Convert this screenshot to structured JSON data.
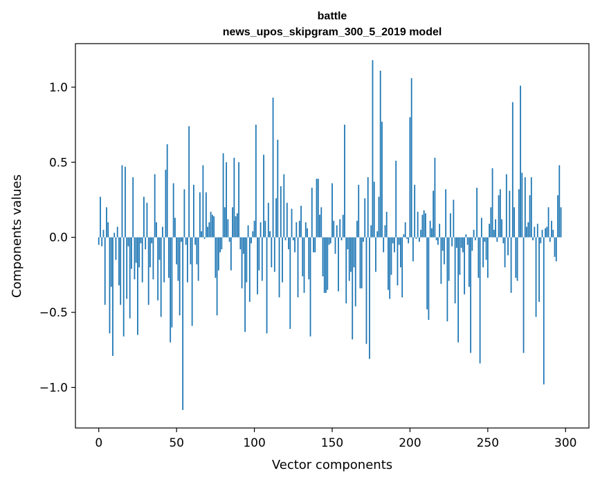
{
  "chart_data": {
    "type": "bar",
    "title": "battle",
    "subtitle": "news_upos_skipgram_300_5_2019 model",
    "xlabel": "Vector components",
    "ylabel": "Components values",
    "xlim": [
      -15,
      315
    ],
    "ylim": [
      -1.27,
      1.29
    ],
    "xticks": [
      0,
      50,
      100,
      150,
      200,
      250,
      300
    ],
    "yticks": [
      -1.0,
      -0.5,
      0.0,
      0.5,
      1.0
    ],
    "ytick_labels": [
      "−1.0",
      "−0.5",
      "0.0",
      "0.5",
      "1.0"
    ],
    "grid": false,
    "color": "#1f77b4",
    "x_start": 0,
    "values": [
      -0.05,
      0.27,
      -0.06,
      0.05,
      -0.45,
      0.2,
      0.1,
      -0.64,
      -0.33,
      -0.79,
      0.03,
      -0.15,
      0.07,
      -0.32,
      -0.45,
      0.48,
      -0.66,
      0.47,
      -0.41,
      -0.06,
      -0.54,
      -0.21,
      0.4,
      -0.28,
      -0.17,
      -0.65,
      -0.2,
      -0.04,
      -0.3,
      0.27,
      -0.08,
      0.23,
      -0.45,
      -0.2,
      -0.04,
      -0.28,
      0.42,
      0.1,
      -0.42,
      -0.15,
      -0.53,
      0.07,
      -0.3,
      0.45,
      0.62,
      -0.27,
      -0.7,
      -0.6,
      0.36,
      0.13,
      -0.18,
      -0.29,
      -0.52,
      -0.03,
      -1.15,
      0.32,
      -0.05,
      -0.3,
      0.74,
      -0.18,
      -0.59,
      0.35,
      -0.05,
      -0.18,
      -0.29,
      0.3,
      0.04,
      0.48,
      -0.01,
      0.3,
      0.07,
      0.1,
      0.17,
      0.15,
      0.14,
      -0.27,
      -0.52,
      -0.22,
      -0.1,
      -0.08,
      0.56,
      0.2,
      0.5,
      0.12,
      -0.03,
      -0.22,
      0.2,
      0.53,
      0.14,
      0.16,
      0.5,
      -0.08,
      -0.34,
      -0.11,
      -0.63,
      -0.3,
      0.08,
      -0.43,
      -0.04,
      0.04,
      0.11,
      0.75,
      -0.38,
      -0.22,
      0.1,
      -0.29,
      0.55,
      0.11,
      -0.64,
      0.23,
      0.04,
      -0.2,
      0.93,
      -0.23,
      0.26,
      0.65,
      -0.4,
      0.34,
      -0.3,
      0.42,
      -0.02,
      0.23,
      -0.08,
      -0.61,
      0.19,
      -0.02,
      -0.1,
      0.1,
      -0.4,
      0.11,
      0.21,
      -0.26,
      -0.37,
      0.1,
      0.06,
      -0.28,
      -0.66,
      0.33,
      -0.1,
      -0.1,
      0.39,
      0.39,
      0.15,
      0.2,
      -0.26,
      -0.37,
      -0.37,
      -0.35,
      -0.05,
      -0.04,
      0.36,
      0.11,
      -0.11,
      0.08,
      -0.36,
      0.12,
      -0.02,
      0.15,
      0.75,
      -0.44,
      -0.08,
      -0.29,
      -0.23,
      -0.68,
      -0.2,
      -0.46,
      0.11,
      0.35,
      -0.34,
      -0.34,
      -0.03,
      0.26,
      -0.71,
      0.4,
      -0.81,
      0.08,
      1.18,
      0.37,
      -0.23,
      0.04,
      0.27,
      1.11,
      0.77,
      -0.1,
      0.08,
      0.17,
      -0.35,
      -0.41,
      -0.25,
      -0.04,
      -0.1,
      0.51,
      -0.32,
      -0.05,
      -0.2,
      -0.4,
      0.02,
      0.1,
      -0.01,
      -0.04,
      0.8,
      1.06,
      -0.16,
      0.35,
      -0.01,
      0.17,
      -0.03,
      0.05,
      0.15,
      0.18,
      0.16,
      -0.48,
      -0.55,
      0.11,
      0.06,
      0.31,
      0.53,
      -0.02,
      -0.05,
      0.09,
      -0.31,
      -0.09,
      -0.18,
      0.32,
      -0.56,
      -0.29,
      0.16,
      -0.06,
      0.25,
      -0.44,
      -0.07,
      -0.7,
      -0.25,
      -0.07,
      -0.1,
      -0.38,
      0.02,
      -0.05,
      -0.33,
      -0.77,
      -0.09,
      0.05,
      -0.02,
      0.33,
      -0.27,
      -0.84,
      0.13,
      -0.2,
      -0.03,
      -0.15,
      -0.27,
      0.09,
      0.2,
      0.46,
      0.05,
      0.12,
      -0.03,
      0.28,
      0.32,
      0.12,
      -0.04,
      -0.2,
      0.42,
      -0.12,
      0.31,
      -0.37,
      0.9,
      0.2,
      -0.27,
      -0.29,
      0.32,
      1.01,
      0.43,
      -0.77,
      0.4,
      0.07,
      0.1,
      0.28,
      0.4,
      -0.02,
      0.07,
      -0.53,
      0.09,
      -0.43,
      -0.04,
      0.05,
      -0.98,
      0.06,
      0.07,
      0.2,
      -0.03,
      0.11,
      0.05,
      -0.13,
      -0.16,
      0.28,
      0.48,
      0.2
    ]
  }
}
